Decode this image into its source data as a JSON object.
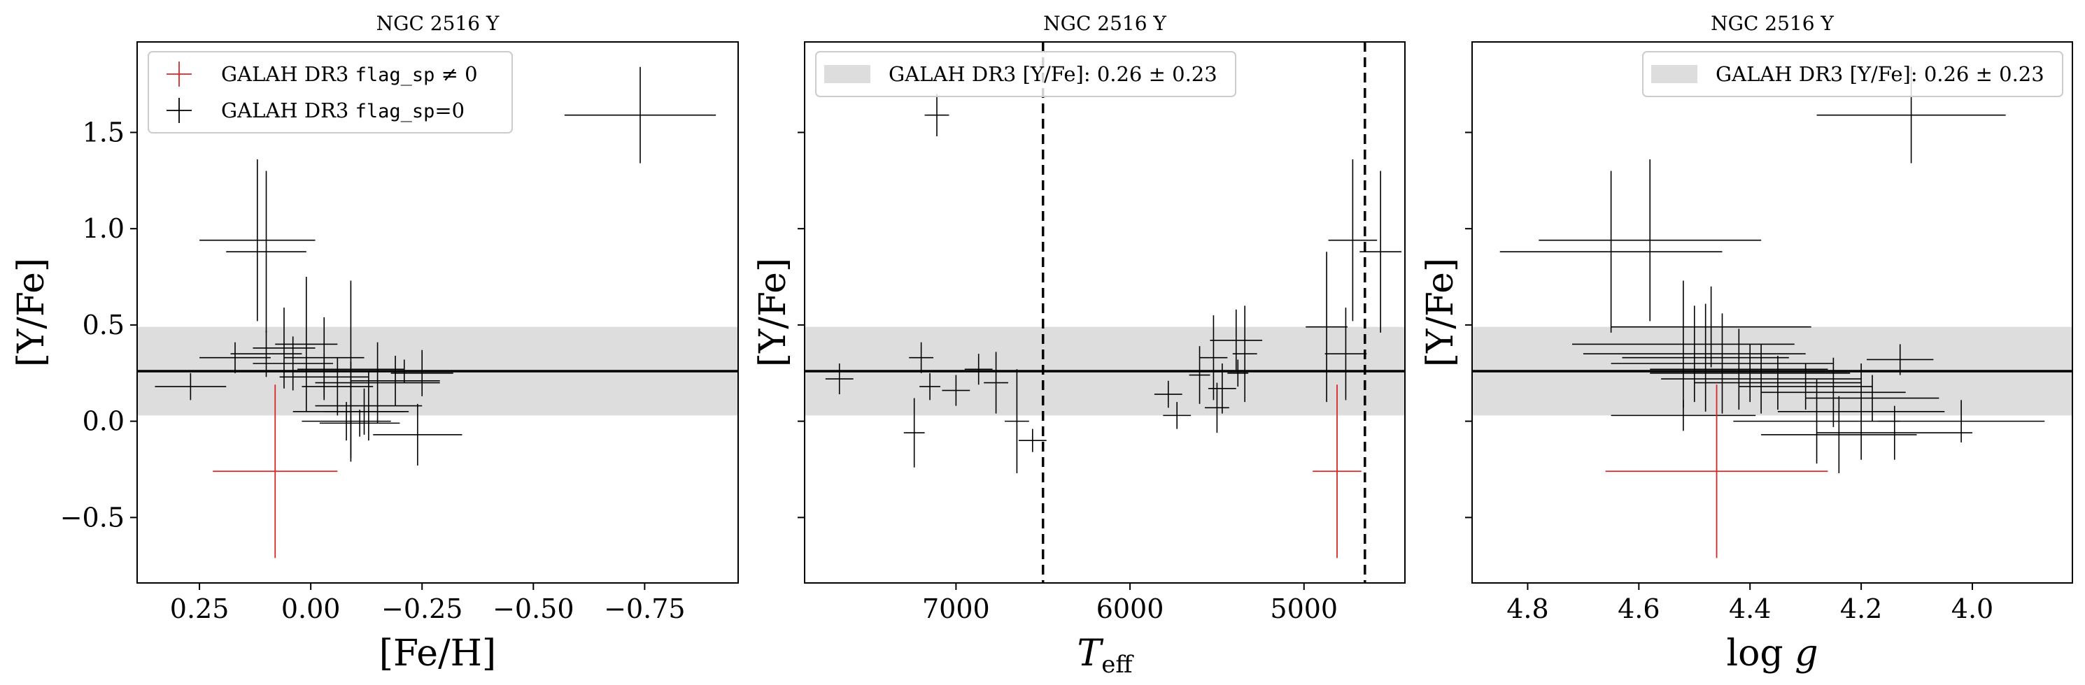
{
  "chart_data": [
    {
      "type": "scatter",
      "title": "NGC 2516 Y",
      "xlabel": "[Fe/H]",
      "ylabel": "[Y/Fe]",
      "xlim": [
        0.39,
        -0.96
      ],
      "ylim": [
        -0.84,
        1.97
      ],
      "xticks": [
        {
          "value": 0.25,
          "label": "0.25"
        },
        {
          "value": 0.0,
          "label": "0.00"
        },
        {
          "value": -0.25,
          "label": "−0.25"
        },
        {
          "value": -0.5,
          "label": "−0.50"
        },
        {
          "value": -0.75,
          "label": "−0.75"
        }
      ],
      "yticks": [
        {
          "value": 1.5,
          "label": "1.5"
        },
        {
          "value": 1.0,
          "label": "1.0"
        },
        {
          "value": 0.5,
          "label": "0.5"
        },
        {
          "value": 0.0,
          "label": "0.0"
        },
        {
          "value": -0.5,
          "label": "−0.5"
        }
      ],
      "show_ytick_labels": true,
      "galah_band": {
        "mean": 0.26,
        "sigma": 0.23
      },
      "legend": {
        "position": "top-left",
        "entries": [
          {
            "kind": "cross",
            "color": "#d62728",
            "prefix": "GALAH DR3 ",
            "code": "flag_sp",
            "suffix": " ≠ 0"
          },
          {
            "kind": "cross",
            "color": "#000000",
            "prefix": "GALAH DR3 ",
            "code": "flag_sp",
            "suffix": "=0"
          }
        ]
      },
      "vlines": [],
      "series": [
        {
          "flag": "flag_sp=0",
          "color": "#000000",
          "points": [
            {
              "x": -0.74,
              "y": 1.59,
              "xerr": 0.17,
              "yerr": 0.25
            },
            {
              "x": 0.12,
              "y": 0.94,
              "xerr": 0.13,
              "yerr": 0.42
            },
            {
              "x": 0.1,
              "y": 0.88,
              "xerr": 0.09,
              "yerr": 0.42
            },
            {
              "x": 0.27,
              "y": 0.18,
              "xerr": 0.08,
              "yerr": 0.07
            },
            {
              "x": 0.17,
              "y": 0.33,
              "xerr": 0.08,
              "yerr": 0.08
            },
            {
              "x": 0.1,
              "y": 0.35,
              "xerr": 0.08,
              "yerr": 0.12
            },
            {
              "x": 0.06,
              "y": 0.38,
              "xerr": 0.07,
              "yerr": 0.21
            },
            {
              "x": 0.01,
              "y": 0.4,
              "xerr": 0.07,
              "yerr": 0.35
            },
            {
              "x": 0.04,
              "y": 0.3,
              "xerr": 0.09,
              "yerr": 0.14
            },
            {
              "x": -0.03,
              "y": 0.23,
              "xerr": 0.1,
              "yerr": 0.12
            },
            {
              "x": -0.03,
              "y": 0.33,
              "xerr": 0.09,
              "yerr": 0.21
            },
            {
              "x": -0.06,
              "y": 0.18,
              "xerr": 0.08,
              "yerr": 0.15
            },
            {
              "x": -0.09,
              "y": 0.27,
              "xerr": 0.12,
              "yerr": 0.46
            },
            {
              "x": -0.09,
              "y": 0.05,
              "xerr": 0.13,
              "yerr": 0.26
            },
            {
              "x": -0.12,
              "y": 0.05,
              "xerr": 0.09,
              "yerr": 0.12
            },
            {
              "x": -0.13,
              "y": 0.08,
              "xerr": 0.12,
              "yerr": 0.18
            },
            {
              "x": -0.15,
              "y": 0.2,
              "xerr": 0.14,
              "yerr": 0.21
            },
            {
              "x": -0.19,
              "y": 0.21,
              "xerr": 0.1,
              "yerr": 0.13
            },
            {
              "x": -0.21,
              "y": 0.26,
              "xerr": 0.17,
              "yerr": 0.06
            },
            {
              "x": -0.25,
              "y": 0.25,
              "xerr": 0.07,
              "yerr": 0.12
            },
            {
              "x": -0.24,
              "y": -0.07,
              "xerr": 0.1,
              "yerr": 0.16
            },
            {
              "x": -0.11,
              "y": -0.01,
              "xerr": 0.09,
              "yerr": 0.07
            },
            {
              "x": -0.08,
              "y": 0.0,
              "xerr": 0.1,
              "yerr": 0.1
            }
          ]
        },
        {
          "flag": "flag_sp!=0",
          "color": "#d62728",
          "points": [
            {
              "x": 0.08,
              "y": -0.26,
              "xerr": 0.14,
              "yerr": 0.45
            }
          ]
        }
      ]
    },
    {
      "type": "scatter",
      "title": "NGC 2516 Y",
      "xlabel": "T_eff",
      "ylabel": "[Y/Fe]",
      "xlim": [
        7870,
        4420
      ],
      "ylim": [
        -0.84,
        1.97
      ],
      "xticks": [
        {
          "value": 7000,
          "label": "7000"
        },
        {
          "value": 6000,
          "label": "6000"
        },
        {
          "value": 5000,
          "label": "5000"
        }
      ],
      "yticks": [
        {
          "value": 1.5,
          "label": ""
        },
        {
          "value": 1.0,
          "label": ""
        },
        {
          "value": 0.5,
          "label": ""
        },
        {
          "value": 0.0,
          "label": ""
        },
        {
          "value": -0.5,
          "label": ""
        }
      ],
      "show_ytick_labels": false,
      "galah_band": {
        "mean": 0.26,
        "sigma": 0.23
      },
      "legend": {
        "position": "top-left",
        "entries": [
          {
            "kind": "band",
            "color": "#dddddd",
            "prefix": "GALAH DR3 [Y/Fe]: ",
            "code": "",
            "suffix": "0.26 ± 0.23"
          }
        ]
      },
      "vlines": [
        6500,
        4650
      ],
      "series": [
        {
          "flag": "flag_sp=0",
          "color": "#000000",
          "points": [
            {
              "x": 7110,
              "y": 1.59,
              "xerr": 70,
              "yerr": 0.11
            },
            {
              "x": 4720,
              "y": 0.94,
              "xerr": 140,
              "yerr": 0.42
            },
            {
              "x": 4560,
              "y": 0.88,
              "xerr": 120,
              "yerr": 0.42
            },
            {
              "x": 7670,
              "y": 0.22,
              "xerr": 80,
              "yerr": 0.08
            },
            {
              "x": 7200,
              "y": 0.33,
              "xerr": 70,
              "yerr": 0.08
            },
            {
              "x": 7150,
              "y": 0.18,
              "xerr": 60,
              "yerr": 0.07
            },
            {
              "x": 7000,
              "y": 0.16,
              "xerr": 80,
              "yerr": 0.08
            },
            {
              "x": 6870,
              "y": 0.27,
              "xerr": 80,
              "yerr": 0.08
            },
            {
              "x": 6770,
              "y": 0.2,
              "xerr": 70,
              "yerr": 0.16
            },
            {
              "x": 6650,
              "y": 0.0,
              "xerr": 70,
              "yerr": 0.27
            },
            {
              "x": 6560,
              "y": -0.1,
              "xerr": 80,
              "yerr": 0.06
            },
            {
              "x": 7240,
              "y": -0.06,
              "xerr": 60,
              "yerr": 0.18
            },
            {
              "x": 5780,
              "y": 0.14,
              "xerr": 80,
              "yerr": 0.07
            },
            {
              "x": 5730,
              "y": 0.03,
              "xerr": 80,
              "yerr": 0.07
            },
            {
              "x": 5600,
              "y": 0.24,
              "xerr": 60,
              "yerr": 0.15
            },
            {
              "x": 5520,
              "y": 0.33,
              "xerr": 80,
              "yerr": 0.22
            },
            {
              "x": 5500,
              "y": 0.07,
              "xerr": 70,
              "yerr": 0.13
            },
            {
              "x": 5470,
              "y": 0.17,
              "xerr": 80,
              "yerr": 0.13
            },
            {
              "x": 5390,
              "y": 0.42,
              "xerr": 150,
              "yerr": 0.16
            },
            {
              "x": 5380,
              "y": 0.25,
              "xerr": 60,
              "yerr": 0.07
            },
            {
              "x": 5340,
              "y": 0.35,
              "xerr": 70,
              "yerr": 0.25
            },
            {
              "x": 4870,
              "y": 0.49,
              "xerr": 120,
              "yerr": 0.39
            },
            {
              "x": 4760,
              "y": 0.35,
              "xerr": 120,
              "yerr": 0.24
            }
          ]
        },
        {
          "flag": "flag_sp!=0",
          "color": "#d62728",
          "points": [
            {
              "x": 4810,
              "y": -0.26,
              "xerr": 140,
              "yerr": 0.45
            }
          ]
        }
      ]
    },
    {
      "type": "scatter",
      "title": "NGC 2516 Y",
      "xlabel": "log g",
      "ylabel": "[Y/Fe]",
      "xlim": [
        4.9,
        3.82
      ],
      "ylim": [
        -0.84,
        1.97
      ],
      "xticks": [
        {
          "value": 4.8,
          "label": "4.8"
        },
        {
          "value": 4.6,
          "label": "4.6"
        },
        {
          "value": 4.4,
          "label": "4.4"
        },
        {
          "value": 4.2,
          "label": "4.2"
        },
        {
          "value": 4.0,
          "label": "4.0"
        }
      ],
      "yticks": [
        {
          "value": 1.5,
          "label": "1.5"
        },
        {
          "value": 1.0,
          "label": "1.0"
        },
        {
          "value": 0.5,
          "label": "0.5"
        },
        {
          "value": 0.0,
          "label": "0.0"
        },
        {
          "value": -0.5,
          "label": "−0.5"
        }
      ],
      "show_ytick_labels": false,
      "galah_band": {
        "mean": 0.26,
        "sigma": 0.23
      },
      "legend": {
        "position": "top-right",
        "entries": [
          {
            "kind": "band",
            "color": "#dddddd",
            "prefix": "GALAH DR3 [Y/Fe]: ",
            "code": "",
            "suffix": "0.26 ± 0.23"
          }
        ]
      },
      "vlines": [],
      "series": [
        {
          "flag": "flag_sp=0",
          "color": "#000000",
          "points": [
            {
              "x": 4.11,
              "y": 1.59,
              "xerr": 0.17,
              "yerr": 0.25
            },
            {
              "x": 4.58,
              "y": 0.94,
              "xerr": 0.2,
              "yerr": 0.42
            },
            {
              "x": 4.65,
              "y": 0.88,
              "xerr": 0.2,
              "yerr": 0.42
            },
            {
              "x": 4.47,
              "y": 0.49,
              "xerr": 0.18,
              "yerr": 0.21
            },
            {
              "x": 4.52,
              "y": 0.4,
              "xerr": 0.2,
              "yerr": 0.33
            },
            {
              "x": 4.5,
              "y": 0.35,
              "xerr": 0.2,
              "yerr": 0.25
            },
            {
              "x": 4.48,
              "y": 0.33,
              "xerr": 0.15,
              "yerr": 0.28
            },
            {
              "x": 4.45,
              "y": 0.3,
              "xerr": 0.2,
              "yerr": 0.26
            },
            {
              "x": 4.42,
              "y": 0.27,
              "xerr": 0.16,
              "yerr": 0.21
            },
            {
              "x": 4.4,
              "y": 0.25,
              "xerr": 0.18,
              "yerr": 0.15
            },
            {
              "x": 4.38,
              "y": 0.22,
              "xerr": 0.18,
              "yerr": 0.18
            },
            {
              "x": 4.35,
              "y": 0.2,
              "xerr": 0.15,
              "yerr": 0.14
            },
            {
              "x": 4.3,
              "y": 0.18,
              "xerr": 0.12,
              "yerr": 0.12
            },
            {
              "x": 4.25,
              "y": 0.15,
              "xerr": 0.13,
              "yerr": 0.18
            },
            {
              "x": 4.18,
              "y": 0.12,
              "xerr": 0.12,
              "yerr": 0.12
            },
            {
              "x": 4.13,
              "y": 0.32,
              "xerr": 0.06,
              "yerr": 0.08
            },
            {
              "x": 4.2,
              "y": 0.05,
              "xerr": 0.15,
              "yerr": 0.25
            },
            {
              "x": 4.28,
              "y": 0.0,
              "xerr": 0.15,
              "yerr": 0.22
            },
            {
              "x": 4.02,
              "y": 0.0,
              "xerr": 0.15,
              "yerr": 0.11
            },
            {
              "x": 4.14,
              "y": -0.06,
              "xerr": 0.14,
              "yerr": 0.14
            },
            {
              "x": 4.24,
              "y": -0.07,
              "xerr": 0.14,
              "yerr": 0.2
            },
            {
              "x": 4.52,
              "y": 0.03,
              "xerr": 0.13,
              "yerr": 0.08
            }
          ]
        },
        {
          "flag": "flag_sp!=0",
          "color": "#d62728",
          "points": [
            {
              "x": 4.46,
              "y": -0.26,
              "xerr": 0.2,
              "yerr": 0.45
            }
          ]
        }
      ]
    }
  ]
}
